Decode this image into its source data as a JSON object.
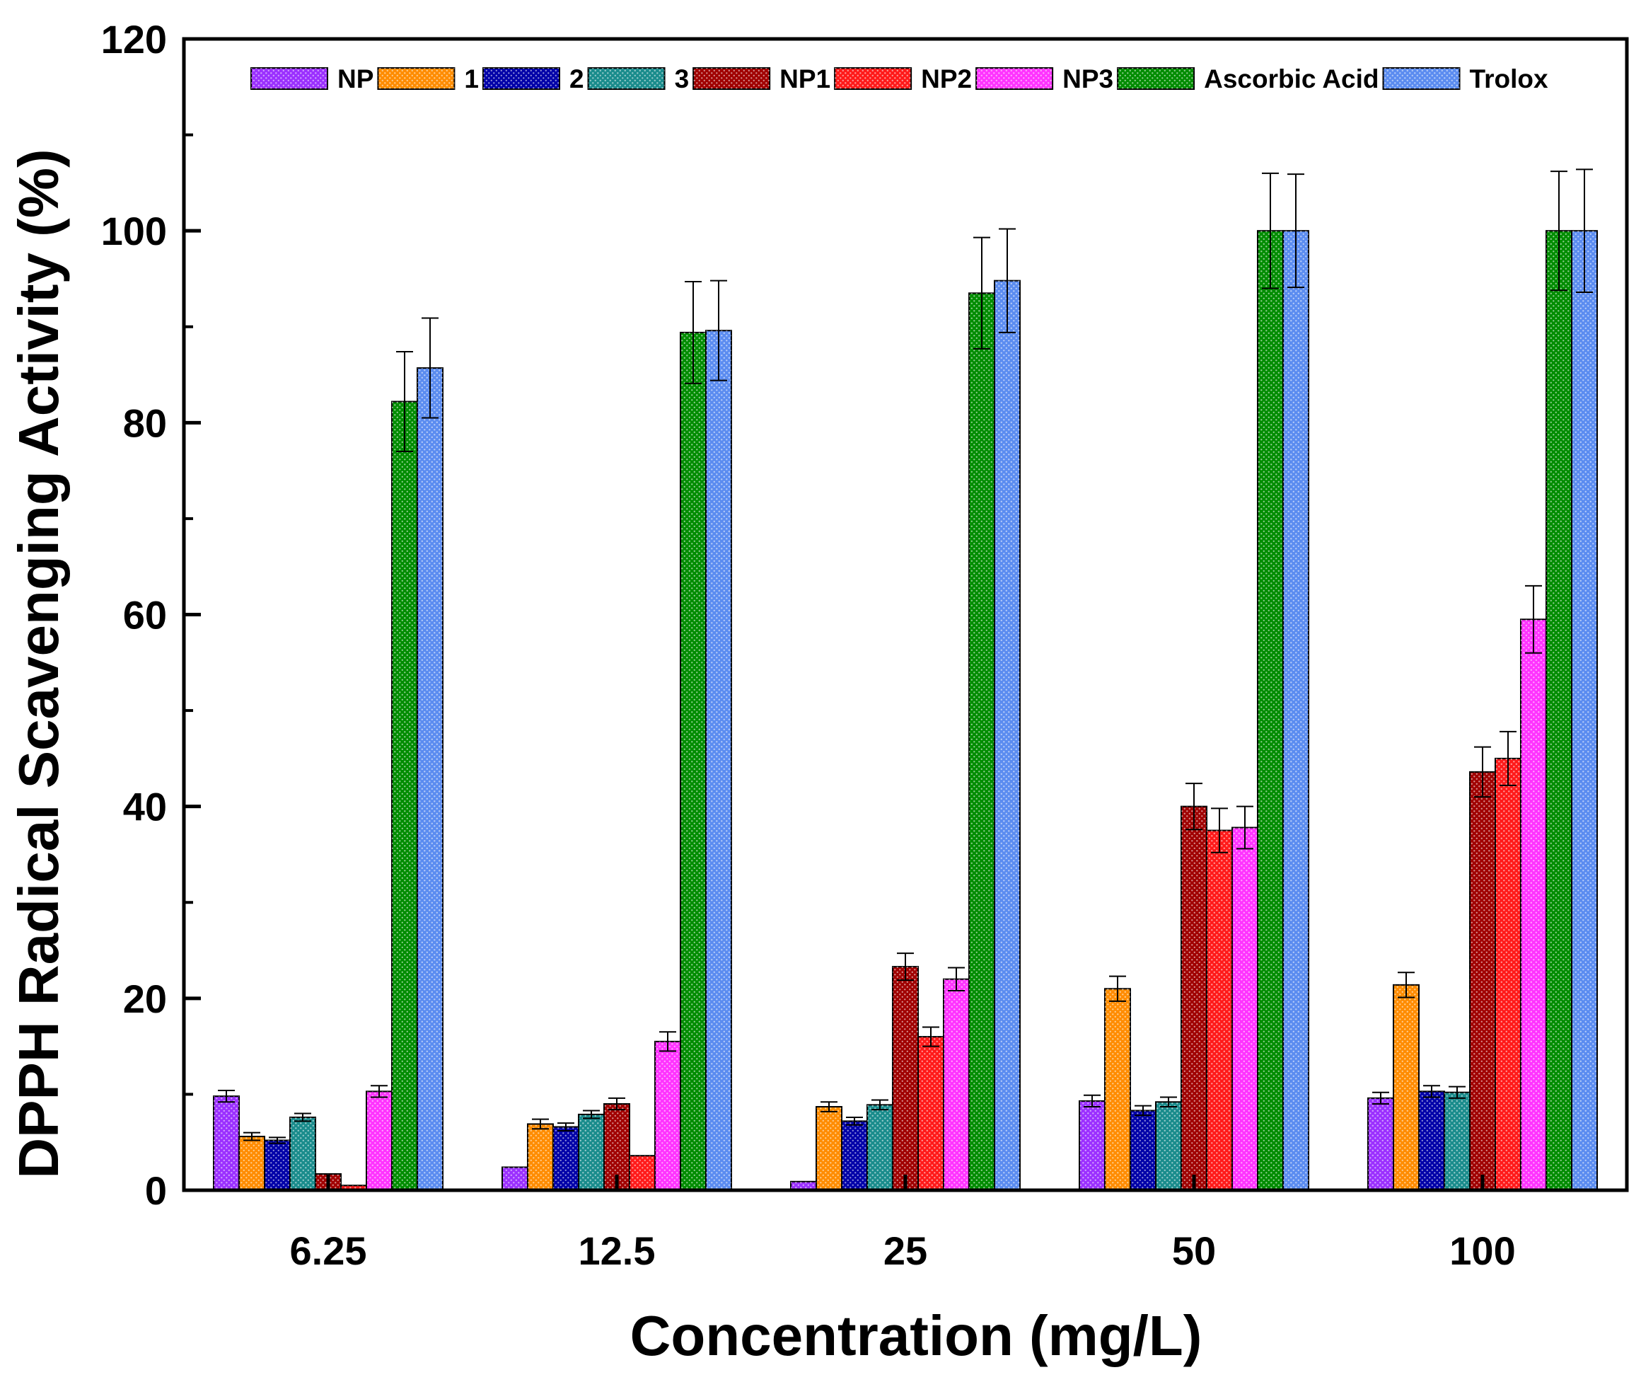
{
  "chart_data": {
    "type": "bar",
    "title": "",
    "xlabel": "Concentration (mg/L)",
    "ylabel": "DPPH Radical Scavenging Activity (%)",
    "ylim": [
      0,
      120
    ],
    "yticks": [
      "0",
      "20",
      "40",
      "60",
      "80",
      "100",
      "120"
    ],
    "categories": [
      "6.25",
      "12.5",
      "25",
      "50",
      "100"
    ],
    "grid": false,
    "legend_position": "top",
    "series": [
      {
        "name": "NP",
        "color": "#9b30ff",
        "values": [
          9.8,
          2.4,
          0.9,
          9.3,
          9.6
        ],
        "errors": [
          0.6,
          0.0,
          0.0,
          0.6,
          0.6
        ]
      },
      {
        "name": "1",
        "color": "#ff8c00",
        "values": [
          5.6,
          6.9,
          8.7,
          21.0,
          21.4
        ],
        "errors": [
          0.4,
          0.5,
          0.5,
          1.3,
          1.3
        ]
      },
      {
        "name": "2",
        "color": "#0000a8",
        "values": [
          5.2,
          6.6,
          7.2,
          8.3,
          10.3
        ],
        "errors": [
          0.3,
          0.4,
          0.4,
          0.5,
          0.6
        ]
      },
      {
        "name": "3",
        "color": "#1a8c8c",
        "values": [
          7.6,
          7.9,
          8.9,
          9.2,
          10.2
        ],
        "errors": [
          0.4,
          0.4,
          0.5,
          0.5,
          0.6
        ]
      },
      {
        "name": "NP1",
        "color": "#a00000",
        "values": [
          1.7,
          9.0,
          23.3,
          40.0,
          43.6
        ],
        "errors": [
          0.0,
          0.6,
          1.4,
          2.4,
          2.6
        ]
      },
      {
        "name": "NP2",
        "color": "#ff1a1a",
        "values": [
          0.5,
          3.6,
          16.0,
          37.5,
          45.0
        ],
        "errors": [
          0.0,
          0.0,
          1.0,
          2.3,
          2.8
        ]
      },
      {
        "name": "NP3",
        "color": "#ff33ff",
        "values": [
          10.3,
          15.5,
          22.0,
          37.8,
          59.5
        ],
        "errors": [
          0.6,
          1.0,
          1.2,
          2.2,
          3.5
        ]
      },
      {
        "name": "Ascorbic Acid",
        "color": "#008c00",
        "values": [
          82.2,
          89.4,
          93.5,
          100.0,
          100.0
        ],
        "errors": [
          5.2,
          5.3,
          5.8,
          6.0,
          6.2
        ]
      },
      {
        "name": "Trolox",
        "color": "#5b8cf0",
        "values": [
          85.7,
          89.6,
          94.8,
          100.0,
          100.0
        ],
        "errors": [
          5.2,
          5.2,
          5.4,
          5.9,
          6.4
        ]
      }
    ]
  }
}
